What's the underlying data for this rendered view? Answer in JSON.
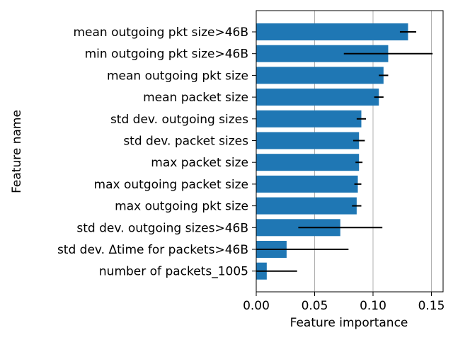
{
  "chart_data": {
    "type": "bar",
    "orientation": "horizontal",
    "xlabel": "Feature importance",
    "ylabel": "Feature name",
    "xlim": [
      0.0,
      0.16
    ],
    "xticks": [
      "0.00",
      "0.05",
      "0.10",
      "0.15"
    ],
    "xtick_values": [
      0.0,
      0.05,
      0.1,
      0.15
    ],
    "grid": "vertical",
    "categories": [
      "mean outgoing pkt size>46B",
      "min outgoing pkt size>46B",
      "mean outgoing pkt size",
      "mean packet size",
      "std dev. outgoing sizes",
      "std dev. packet sizes",
      "max packet size",
      "max outgoing packet size",
      "max outgoing pkt size",
      "std dev. outgoing sizes>46B",
      "std dev. Δtime for packets>46B",
      "number of packets_1005"
    ],
    "values": [
      0.13,
      0.113,
      0.109,
      0.105,
      0.09,
      0.088,
      0.088,
      0.087,
      0.086,
      0.072,
      0.026,
      0.009
    ],
    "errors": [
      0.007,
      0.038,
      0.004,
      0.004,
      0.004,
      0.005,
      0.003,
      0.003,
      0.004,
      0.036,
      0.053,
      0.026
    ],
    "colors": {
      "bar": "#1f77b4",
      "errorbar": "#000000",
      "grid": "#b0b0b0"
    }
  }
}
